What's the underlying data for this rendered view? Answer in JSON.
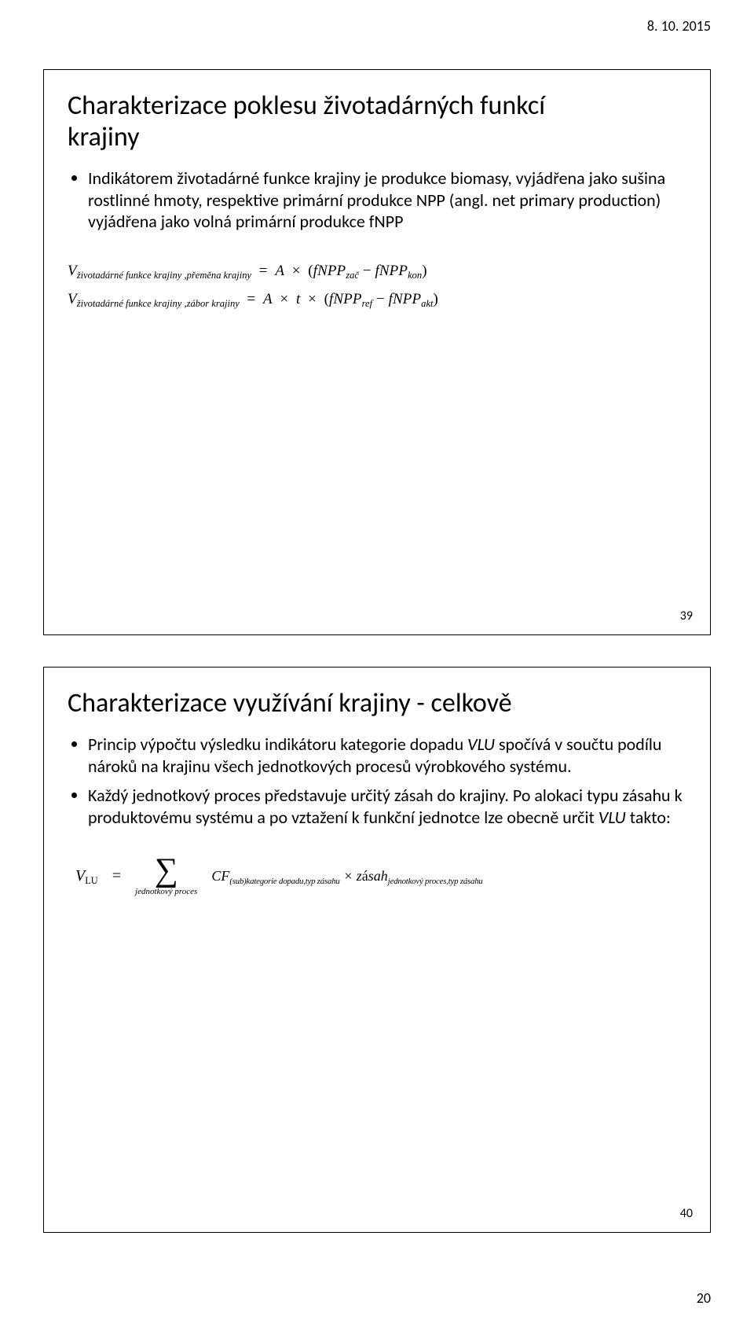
{
  "header": {
    "date": "8. 10. 2015"
  },
  "footer": {
    "page": "20"
  },
  "slide1": {
    "title_line1": "Charakterizace poklesu životadárných funkcí",
    "title_line2": "krajiny",
    "bullet": "Indikátorem životadárné funkce krajiny je produkce biomasy, vyjádřena jako sušina rostlinné hmoty, respektive primární produkce NPP (angl. net primary production) vyjádřena jako volná primární produkce fNPP",
    "formula1_lhs_main": "V",
    "formula1_lhs_sub": "životadárné funkce krajiny ,přeměna krajiny",
    "formula1_rhs_A": "A",
    "formula1_rhs_times1": "×",
    "formula1_rhs_open": "(",
    "formula1_rhs_t1": "fNPP",
    "formula1_rhs_t1_sub": "zač",
    "formula1_rhs_minus": " − ",
    "formula1_rhs_t2": "fNPP",
    "formula1_rhs_t2_sub": "kon",
    "formula1_rhs_close": ")",
    "formula2_lhs_main": "V",
    "formula2_lhs_sub": "životadárné funkce krajiny ,zábor krajiny",
    "formula2_rhs_A": "A",
    "formula2_rhs_times1": "×",
    "formula2_rhs_t": "t",
    "formula2_rhs_times2": "×",
    "formula2_rhs_open": "(",
    "formula2_rhs_t1": "fNPP",
    "formula2_rhs_t1_sub": "ref",
    "formula2_rhs_minus": " − ",
    "formula2_rhs_t2": "fNPP",
    "formula2_rhs_t2_sub": "akt",
    "formula2_rhs_close": ")",
    "number": "39"
  },
  "slide2": {
    "title": "Charakterizace využívání krajiny - celkově",
    "bullet1_pre": "Princip výpočtu výsledku indikátoru kategorie dopadu ",
    "bullet1_var": "V",
    "bullet1_var_sub": "LU",
    "bullet1_post": " spočívá v součtu podílu nároků na krajinu všech jednotkových procesů výrobkového systému.",
    "bullet2": "Každý jednotkový proces představuje určitý zásah do krajiny. Po alokaci typu zásahu k produktovému systému a po vztažení k funkční jednotce lze obecně určit ",
    "bullet2_var": "V",
    "bullet2_var_sub": "LU",
    "bullet2_post": " takto:",
    "sum_lhs": "V",
    "sum_lhs_sub": "LU",
    "sum_eq": "=",
    "sigma": "∑",
    "sigma_sub": "jednotkový proces",
    "sum_cf": "CF",
    "sum_cf_sub": "(sub)kategorie dopadu,typ zásahu",
    "sum_times": " × ",
    "sum_z_pre": "z",
    "sum_z_acc": "á",
    "sum_z_post": "sah",
    "sum_z_sub": "jednotkový proces,typ zásahu",
    "number": "40"
  }
}
